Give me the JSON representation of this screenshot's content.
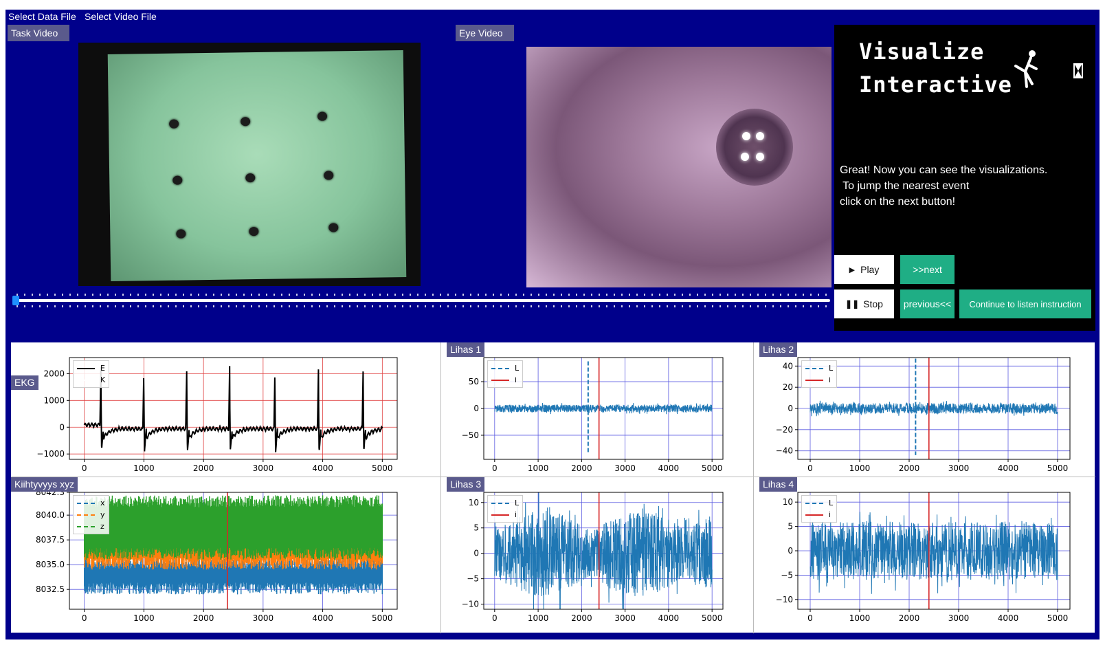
{
  "menu": {
    "items": [
      "Select Data File",
      "Select Video File"
    ]
  },
  "task_video": {
    "label": "Task Video"
  },
  "eye_video": {
    "label": "Eye Video"
  },
  "timeline": {
    "position": 0.0
  },
  "side_panel": {
    "title_lines": [
      "Visualize",
      "Interactive"
    ],
    "instructions": [
      "Great! Now you can see the visualizations.",
      " To jump the nearest event",
      "click on the next button!"
    ],
    "buttons": {
      "play": "Play",
      "next": ">>next",
      "stop": "Stop",
      "previous": "previous<<",
      "continue": "Continue to listen instruction"
    }
  },
  "colors": {
    "background": "#00008b",
    "accent_green": "#1fae85",
    "label_bg": "#5a5a8c",
    "signal_blue": "#1f77b4",
    "marker_red": "#d62728"
  },
  "icons": {
    "play": "play-icon",
    "stop": "pause-icon",
    "figure": "stick-figure-icon",
    "hourglass": "hourglass-icon"
  },
  "chart_data": [
    {
      "id": "ekg",
      "type": "line",
      "label": "EKG",
      "xlim": [
        -250,
        5250
      ],
      "ylim": [
        -1200,
        2600
      ],
      "xticks": [
        0,
        1000,
        2000,
        3000,
        4000,
        5000
      ],
      "yticks": [
        -1000,
        0,
        1000,
        2000
      ],
      "ytick_labels": [
        "−1000",
        "0",
        "1000",
        "2000"
      ],
      "grid": "red",
      "marker_x": null,
      "legend": [
        {
          "label": "E",
          "color": "#000000",
          "style": "solid-marker"
        },
        {
          "label": "K",
          "color": "#ffffff",
          "style": "solid"
        }
      ],
      "signal": {
        "kind": "ekg",
        "color": "#000000",
        "beats": [
          280,
          1000,
          1720,
          2440,
          3200,
          3930,
          4680
        ],
        "peak": 2400,
        "trough": -1100
      }
    },
    {
      "id": "lihas1",
      "type": "line",
      "label": "Lihas 1",
      "xlim": [
        -250,
        5250
      ],
      "ylim": [
        -95,
        95
      ],
      "xticks": [
        0,
        1000,
        2000,
        3000,
        4000,
        5000
      ],
      "yticks": [
        -50,
        0,
        50
      ],
      "ytick_labels": [
        "−50",
        "0",
        "50"
      ],
      "grid": "blue",
      "marker_x": 2400,
      "legend": [
        {
          "label": "L",
          "color": "#1f77b4",
          "style": "dashed"
        },
        {
          "label": "i",
          "color": "#d62728",
          "style": "solid"
        }
      ],
      "signal": {
        "kind": "noise",
        "amp": 7,
        "spike_x": 2150,
        "spike_top": 88,
        "spike_bottom": -85
      }
    },
    {
      "id": "lihas2",
      "type": "line",
      "label": "Lihas 2",
      "xlim": [
        -250,
        5250
      ],
      "ylim": [
        -48,
        48
      ],
      "xticks": [
        0,
        1000,
        2000,
        3000,
        4000,
        5000
      ],
      "yticks": [
        -40,
        -20,
        0,
        20,
        40
      ],
      "ytick_labels": [
        "−40",
        "−20",
        "0",
        "20",
        "40"
      ],
      "grid": "blue",
      "marker_x": 2400,
      "legend": [
        {
          "label": "L",
          "color": "#1f77b4",
          "style": "dashed"
        },
        {
          "label": "i",
          "color": "#d62728",
          "style": "solid"
        }
      ],
      "signal": {
        "kind": "noise",
        "amp": 5,
        "spike_x": 2130,
        "spike_top": 47,
        "spike_bottom": -44
      }
    },
    {
      "id": "kiihtyvyys",
      "type": "line",
      "label": "Kiihtyvyys xyz",
      "xlim": [
        -250,
        5250
      ],
      "ylim": [
        8030.5,
        8042.3
      ],
      "xticks": [
        0,
        1000,
        2000,
        3000,
        4000,
        5000
      ],
      "yticks": [
        8032.5,
        8035.0,
        8037.5,
        8040.0,
        8042.3
      ],
      "ytick_labels": [
        "8032.5",
        "8035.0",
        "8037.5",
        "8040.0",
        "8042.3"
      ],
      "grid": "blue",
      "marker_x": 2400,
      "legend": [
        {
          "label": "x",
          "color": "#1f77b4",
          "style": "dashed"
        },
        {
          "label": "y",
          "color": "#ff7f0e",
          "style": "dashed"
        },
        {
          "label": "z",
          "color": "#2ca02c",
          "style": "dashed"
        }
      ],
      "signal": {
        "kind": "bands",
        "bands": [
          {
            "color": "#1f77b4",
            "low": 8032.0,
            "high": 8035.8
          },
          {
            "color": "#ff7f0e",
            "low": 8034.5,
            "high": 8040.8
          },
          {
            "color": "#2ca02c",
            "low": 8035.5,
            "high": 8042.0
          }
        ]
      }
    },
    {
      "id": "lihas3",
      "type": "line",
      "label": "Lihas 3",
      "xlim": [
        -250,
        5250
      ],
      "ylim": [
        -11,
        12
      ],
      "xticks": [
        0,
        1000,
        2000,
        3000,
        4000,
        5000
      ],
      "yticks": [
        -10,
        -5,
        0,
        5,
        10
      ],
      "ytick_labels": [
        "−10",
        "−5",
        "0",
        "5",
        "10"
      ],
      "grid": "blue",
      "marker_x": 2400,
      "legend": [
        {
          "label": "L",
          "color": "#1f77b4",
          "style": "dashed"
        },
        {
          "label": "i",
          "color": "#d62728",
          "style": "solid"
        }
      ],
      "signal": {
        "kind": "noise",
        "amp": 6.5,
        "spike_x": null
      }
    },
    {
      "id": "lihas4",
      "type": "line",
      "label": "Lihas 4",
      "xlim": [
        -250,
        5250
      ],
      "ylim": [
        -12,
        12
      ],
      "xticks": [
        0,
        1000,
        2000,
        3000,
        4000,
        5000
      ],
      "yticks": [
        -10,
        -5,
        0,
        5,
        10
      ],
      "ytick_labels": [
        "−10",
        "−5",
        "0",
        "5",
        "10"
      ],
      "grid": "blue",
      "marker_x": 2400,
      "legend": [
        {
          "label": "L",
          "color": "#1f77b4",
          "style": "dashed"
        },
        {
          "label": "i",
          "color": "#d62728",
          "style": "solid"
        }
      ],
      "signal": {
        "kind": "noise",
        "amp": 6,
        "spike_x": null
      }
    }
  ]
}
